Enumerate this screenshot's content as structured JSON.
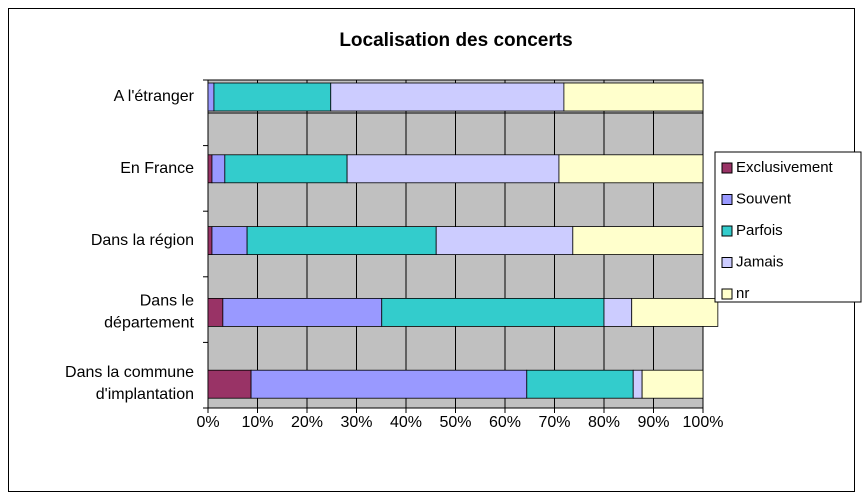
{
  "chart_data": {
    "type": "stacked-bar-horizontal",
    "title": "Localisation des concerts",
    "categories": [
      "A l'étranger",
      "En France",
      "Dans la région",
      "Dans le département",
      "Dans la commune d'implantation"
    ],
    "series": [
      {
        "name": "Exclusivement",
        "color": "#993366",
        "values": [
          0,
          0.8,
          0.8,
          3.0,
          8.7
        ]
      },
      {
        "name": "Souvent",
        "color": "#9999ff",
        "values": [
          1.2,
          2.6,
          7.1,
          32.1,
          55.7
        ]
      },
      {
        "name": "Parfois",
        "color": "#33cccc",
        "values": [
          23.6,
          24.7,
          38.2,
          44.9,
          21.5
        ]
      },
      {
        "name": "Jamais",
        "color": "#ccccff",
        "values": [
          47.1,
          42.8,
          27.6,
          5.6,
          1.8
        ]
      },
      {
        "name": "nr",
        "color": "#ffffcc",
        "values": [
          28.1,
          29.1,
          26.3,
          17.4,
          12.3
        ]
      }
    ],
    "xlim": [
      0,
      100
    ],
    "xticks": [
      {
        "value": 0,
        "label": "0%"
      },
      {
        "value": 10,
        "label": "10%"
      },
      {
        "value": 20,
        "label": "20%"
      },
      {
        "value": 30,
        "label": "30%"
      },
      {
        "value": 40,
        "label": "40%"
      },
      {
        "value": 50,
        "label": "50%"
      },
      {
        "value": 60,
        "label": "60%"
      },
      {
        "value": 70,
        "label": "70%"
      },
      {
        "value": 80,
        "label": "80%"
      },
      {
        "value": 90,
        "label": "90%"
      },
      {
        "value": 100,
        "label": "100%"
      }
    ],
    "grid": true,
    "legend": "right"
  }
}
